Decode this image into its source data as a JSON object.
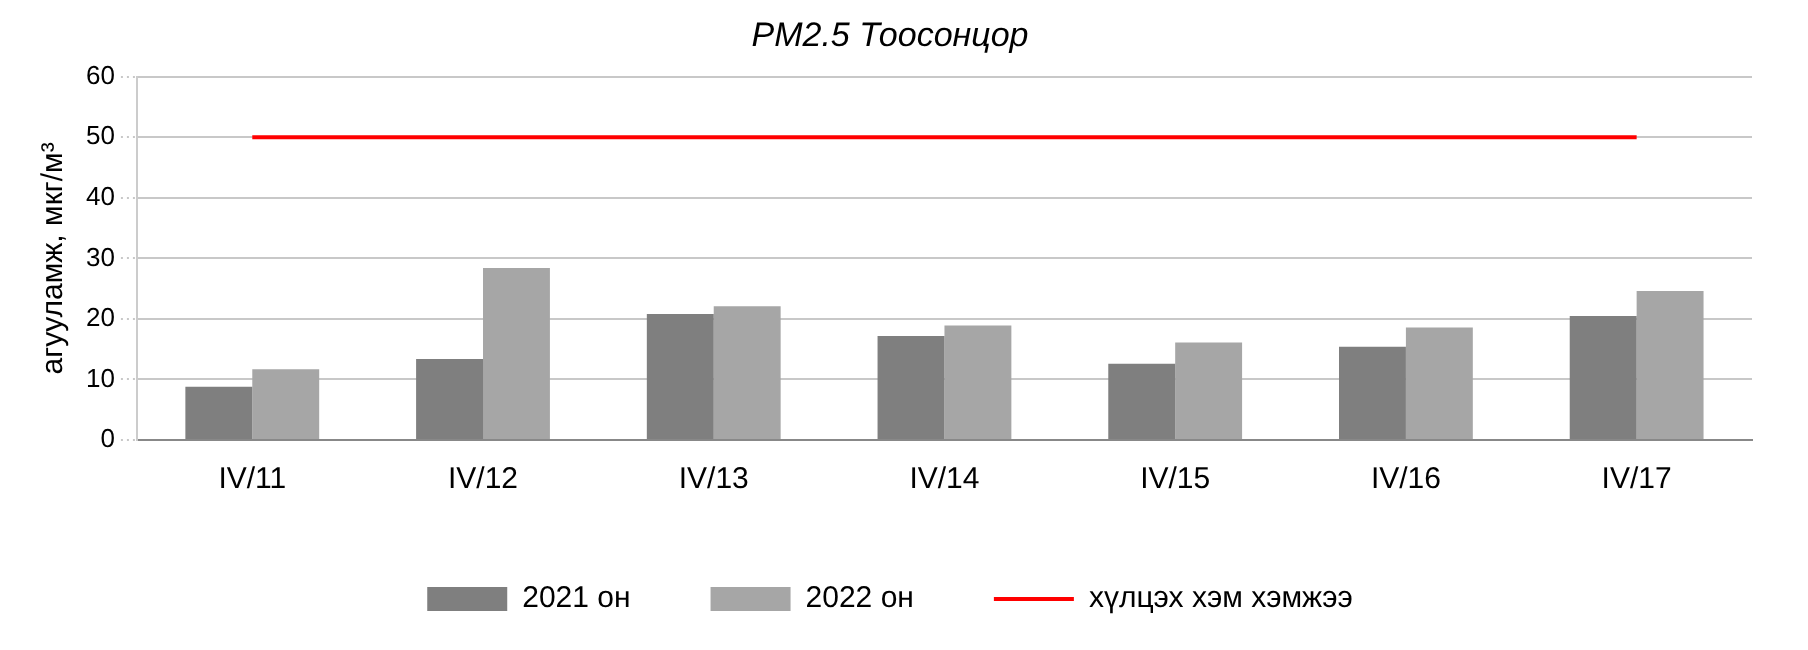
{
  "chart_data": {
    "type": "bar",
    "title": "PM2.5 Тоосонцор",
    "ylabel": "агууламж, мкг/м³",
    "categories": [
      "IV/11",
      "IV/12",
      "IV/13",
      "IV/14",
      "IV/15",
      "IV/16",
      "IV/17"
    ],
    "series": [
      {
        "name": "2021 он",
        "color": "#7f7f7f",
        "values": [
          8.8,
          13.4,
          20.8,
          17.2,
          12.6,
          15.4,
          20.5
        ]
      },
      {
        "name": "2022 он",
        "color": "#a6a6a6",
        "values": [
          11.7,
          28.4,
          22.1,
          18.9,
          16.1,
          18.6,
          24.6
        ]
      },
      {
        "name": "хүлцэх хэм хэмжээ",
        "type": "line",
        "color": "#ff0000",
        "values": [
          50,
          50,
          50,
          50,
          50,
          50,
          50
        ]
      }
    ],
    "ylim": [
      0,
      60
    ],
    "yticks": [
      0,
      10,
      20,
      30,
      40,
      50,
      60
    ],
    "grid": "y",
    "legend": "bottom",
    "marker": "none"
  }
}
